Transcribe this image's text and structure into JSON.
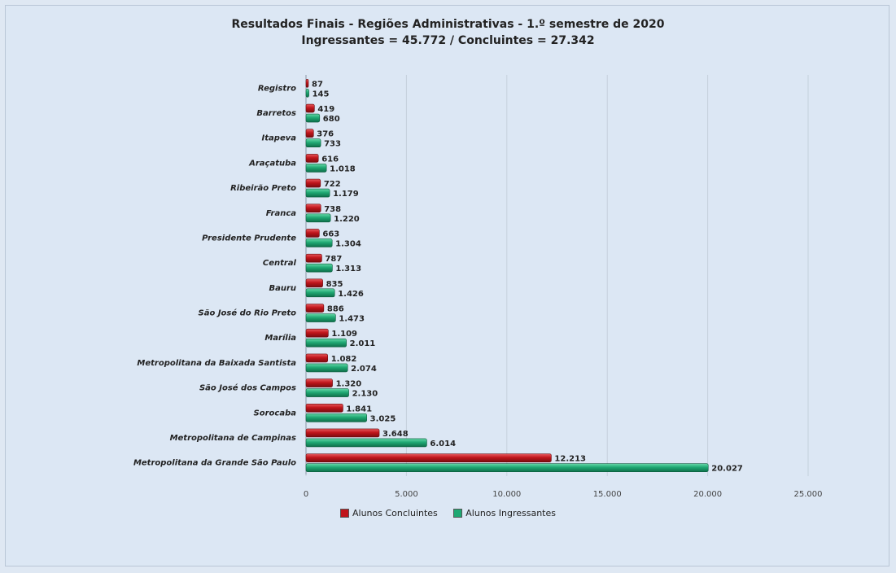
{
  "title_line1": "Resultados Finais - Regiões Administrativas - 1.º semestre de 2020",
  "title_line2": "Ingressantes = 45.772 / Concluintes = 27.342",
  "colors": {
    "concluintes": "#c0151b",
    "ingressantes": "#1fa873"
  },
  "legend": {
    "concluintes": "Alunos Concluintes",
    "ingressantes": "Alunos Ingressantes"
  },
  "chart_data": {
    "type": "bar",
    "orientation": "horizontal",
    "title": "Resultados Finais - Regiões Administrativas - 1.º semestre de 2020",
    "subtitle": "Ingressantes = 45.772 / Concluintes = 27.342",
    "categories": [
      "Registro",
      "Barretos",
      "Itapeva",
      "Araçatuba",
      "Ribeirão Preto",
      "Franca",
      "Presidente Prudente",
      "Central",
      "Bauru",
      "São José do Rio Preto",
      "Marília",
      "Metropolitana da Baixada Santista",
      "São José dos Campos",
      "Sorocaba",
      "Metropolitana de Campinas",
      "Metropolitana da Grande São Paulo"
    ],
    "series": [
      {
        "name": "Alunos Concluintes",
        "values": [
          87,
          419,
          376,
          616,
          722,
          738,
          663,
          787,
          835,
          886,
          1109,
          1082,
          1320,
          1841,
          3648,
          12213
        ],
        "labels": [
          "87",
          "419",
          "376",
          "616",
          "722",
          "738",
          "663",
          "787",
          "835",
          "886",
          "1.109",
          "1.082",
          "1.320",
          "1.841",
          "3.648",
          "12.213"
        ]
      },
      {
        "name": "Alunos Ingressantes",
        "values": [
          145,
          680,
          733,
          1018,
          1179,
          1220,
          1304,
          1313,
          1426,
          1473,
          2011,
          2074,
          2130,
          3025,
          6014,
          20027
        ],
        "labels": [
          "145",
          "680",
          "733",
          "1.018",
          "1.179",
          "1.220",
          "1.304",
          "1.313",
          "1.426",
          "1.473",
          "2.011",
          "2.074",
          "2.130",
          "3.025",
          "6.014",
          "20.027"
        ]
      }
    ],
    "xlim": [
      0,
      25000
    ],
    "xticks": [
      0,
      5000,
      10000,
      15000,
      20000,
      25000
    ],
    "xtick_labels": [
      "0",
      "5.000",
      "10.000",
      "15.000",
      "20.000",
      "25.000"
    ],
    "grid": "vertical",
    "legend_position": "bottom"
  }
}
